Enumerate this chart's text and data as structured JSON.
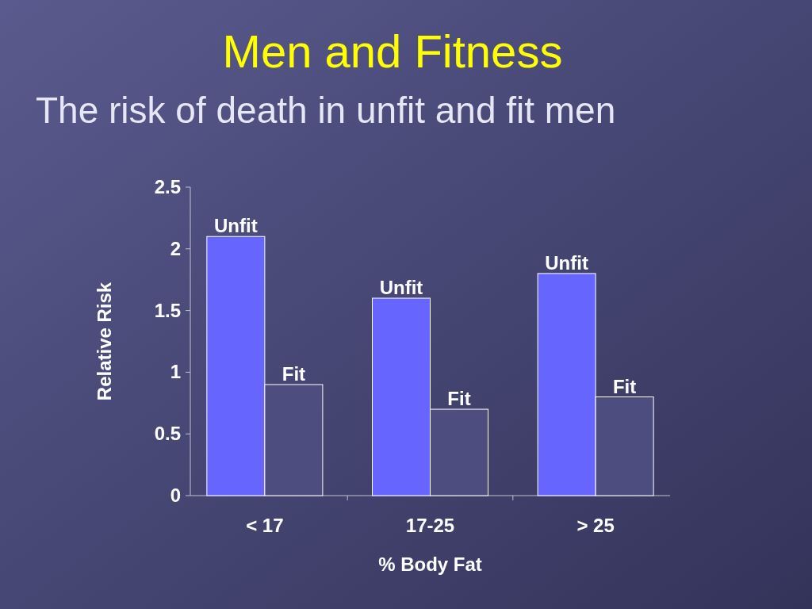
{
  "chart_data": {
    "type": "bar",
    "title": "Men and Fitness",
    "subtitle": "The risk of death in unfit and fit men",
    "xlabel": "% Body Fat",
    "ylabel": "Relative Risk",
    "categories": [
      "< 17",
      "17-25",
      "> 25"
    ],
    "series": [
      {
        "name": "Unfit",
        "color": "#6666ff",
        "values": [
          2.1,
          1.6,
          1.8
        ]
      },
      {
        "name": "Fit",
        "color": "#4d4d80",
        "values": [
          0.9,
          0.7,
          0.8
        ]
      }
    ],
    "ylim": [
      0,
      2.5
    ],
    "yticks": [
      0,
      0.5,
      1,
      1.5,
      2,
      2.5
    ],
    "grid": false
  }
}
